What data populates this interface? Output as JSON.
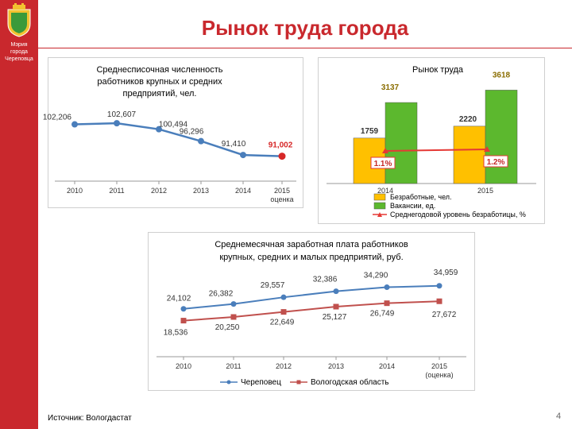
{
  "header": {
    "title": "Рынок труда города",
    "org_lines": [
      "Мэрия",
      "города",
      "Череповца"
    ]
  },
  "colors": {
    "brand_red": "#c9282d",
    "line_blue": "#4a7ebb",
    "line_red": "#c0504d",
    "bar_orange": "#ffc000",
    "bar_green": "#5cb82e"
  },
  "footer": {
    "source": "Источник: Вологдастат",
    "page_number": "4"
  },
  "chart_data": [
    {
      "type": "line",
      "title_lines": [
        "Среднесписочная численность",
        "работников крупных и средних",
        "предприятий, чел."
      ],
      "categories": [
        "2010",
        "2011",
        "2012",
        "2013",
        "2014",
        "2015 оценка"
      ],
      "category_lines": [
        [
          "2010"
        ],
        [
          "2011"
        ],
        [
          "2012"
        ],
        [
          "2013"
        ],
        [
          "2014"
        ],
        [
          "2015",
          "оценка"
        ]
      ],
      "values": [
        102206,
        102607,
        100494,
        96296,
        91410,
        91002
      ],
      "value_labels": [
        "102,206",
        "102,607",
        "100,494",
        "96,296",
        "91,410",
        "91,002"
      ],
      "ylim": [
        85000,
        106000
      ],
      "highlight_last": true
    },
    {
      "type": "bar",
      "title": "Рынок труда",
      "categories": [
        "2014",
        "2015"
      ],
      "series": [
        {
          "name": "Безработные, чел.",
          "values": [
            1759,
            2220
          ],
          "labels": [
            "1759",
            "2220"
          ],
          "color": "#ffc000"
        },
        {
          "name": "Вакансии, ед.",
          "values": [
            3137,
            3618
          ],
          "labels": [
            "3137",
            "3618"
          ],
          "color": "#5cb82e"
        }
      ],
      "line_series": {
        "name": "Среднегодовой уровень безработицы, %",
        "values": [
          1.1,
          1.2
        ],
        "labels": [
          "1.1%",
          "1.2%"
        ],
        "color": "#e53935"
      },
      "ylim": [
        0,
        4000
      ],
      "legend_position": "bottom"
    },
    {
      "type": "line",
      "title_lines": [
        "Среднемесячная заработная плата работников",
        "крупных, средних и малых предприятий, руб."
      ],
      "categories": [
        "2010",
        "2011",
        "2012",
        "2013",
        "2014",
        "2015 (оценка)"
      ],
      "category_lines": [
        [
          "2010"
        ],
        [
          "2011"
        ],
        [
          "2012"
        ],
        [
          "2013"
        ],
        [
          "2014"
        ],
        [
          "2015",
          "(оценка)"
        ]
      ],
      "series": [
        {
          "name": "Череповец",
          "values": [
            24102,
            26382,
            29557,
            32386,
            34290,
            34959
          ],
          "labels": [
            "24,102",
            "26,382",
            "29,557",
            "32,386",
            "34,290",
            "34,959"
          ],
          "color": "#4a7ebb",
          "marker": "circle"
        },
        {
          "name": "Вологодская область",
          "values": [
            18536,
            20250,
            22649,
            25127,
            26749,
            27672
          ],
          "labels": [
            "18,536",
            "20,250",
            "22,649",
            "25,127",
            "26,749",
            "27,672"
          ],
          "color": "#c0504d",
          "marker": "square"
        }
      ],
      "ylim": [
        0,
        45000
      ],
      "legend_position": "bottom"
    }
  ]
}
